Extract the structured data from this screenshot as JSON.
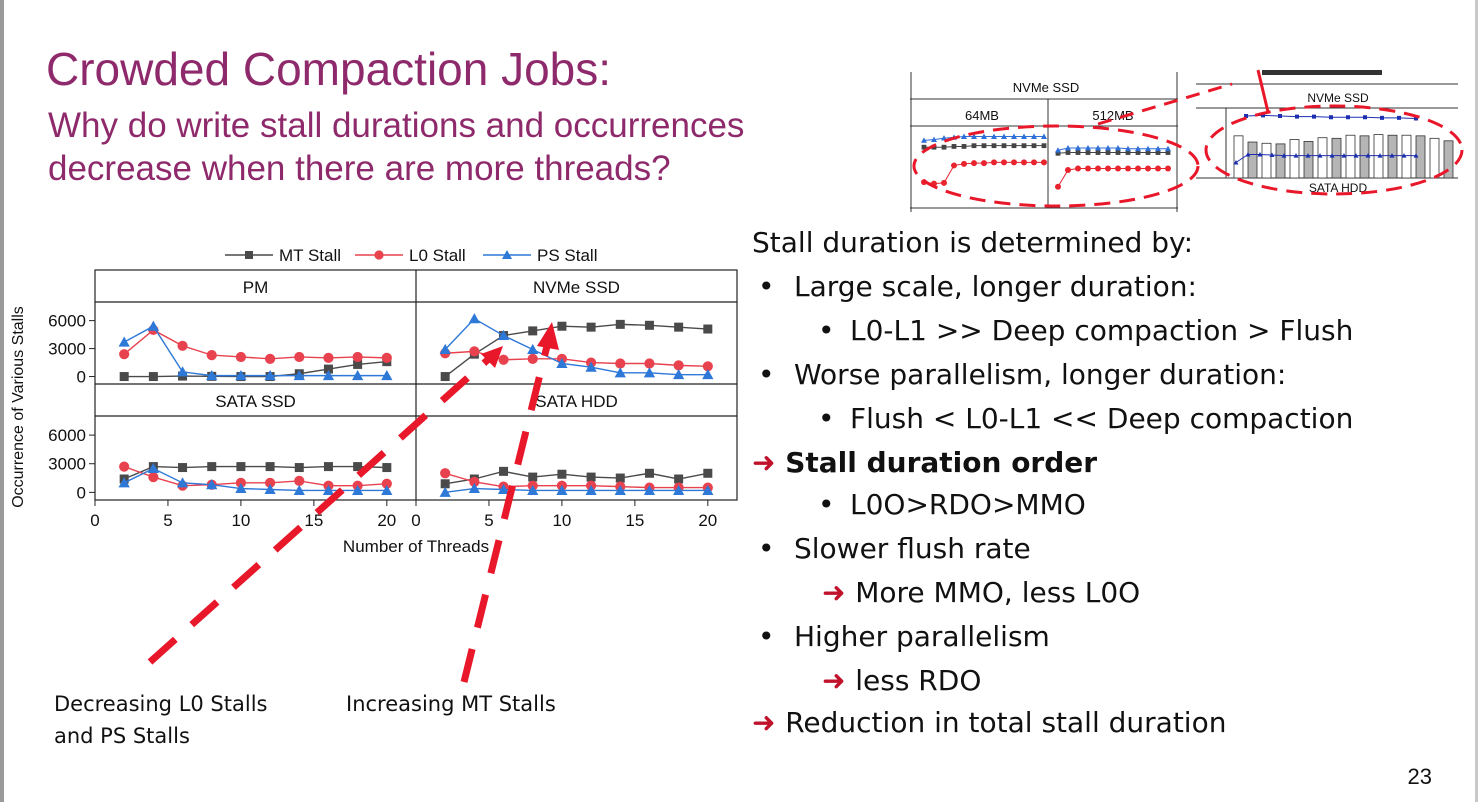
{
  "slide": {
    "title": "Crowded Compaction Jobs:",
    "subtitle_line1": "Why do write stall durations and occurrences",
    "subtitle_line2": "decrease when there are more threads?",
    "page_number": "23",
    "accent_color": "#8e2a6b",
    "arrow_color": "#e8182a"
  },
  "bullets": [
    {
      "text": "Stall duration is determined by:",
      "level": 0,
      "marker": "none",
      "bold": false
    },
    {
      "text": "Large scale, longer duration:",
      "level": 1,
      "marker": "bullet",
      "bold": false
    },
    {
      "text": "L0-L1 >> Deep compaction > Flush",
      "level": 2,
      "marker": "bullet",
      "bold": false
    },
    {
      "text": "Worse parallelism, longer duration:",
      "level": 1,
      "marker": "bullet",
      "bold": false
    },
    {
      "text": "Flush < L0-L1 << Deep compaction",
      "level": 2,
      "marker": "bullet",
      "bold": false
    },
    {
      "text": "Stall duration order",
      "level": 0,
      "marker": "arrow",
      "bold": true
    },
    {
      "text": "L0O>RDO>MMO",
      "level": 2,
      "marker": "bullet",
      "bold": false
    },
    {
      "text": "Slower flush rate",
      "level": 1,
      "marker": "bullet",
      "bold": false
    },
    {
      "text": "More MMO, less L0O",
      "level": 2,
      "marker": "arrow",
      "bold": false
    },
    {
      "text": "Higher parallelism",
      "level": 1,
      "marker": "bullet",
      "bold": false
    },
    {
      "text": "less RDO",
      "level": 2,
      "marker": "arrow",
      "bold": false
    },
    {
      "text": "Reduction in total stall duration",
      "level": 0,
      "marker": "arrow",
      "bold": false
    }
  ],
  "annotations": {
    "left_line1": "Decreasing L0 Stalls",
    "left_line2": "and PS Stalls",
    "right": "Increasing MT Stalls"
  },
  "chart_data": [
    {
      "type": "line",
      "title": "",
      "xlabel": "Number of Threads",
      "ylabel": "Occurrence of Various Stalls",
      "legend": [
        "MT Stall",
        "L0 Stall",
        "PS Stall"
      ],
      "legend_position": "top",
      "x": [
        2,
        4,
        6,
        8,
        10,
        12,
        14,
        16,
        18,
        20
      ],
      "xlim": [
        0,
        22
      ],
      "xticks": [
        "0",
        "5",
        "10",
        "15",
        "20"
      ],
      "ylim": [
        -800,
        8000
      ],
      "yticks": [
        "0",
        "3000",
        "6000"
      ],
      "series_colors": {
        "MT Stall": "#4a4a4a",
        "L0 Stall": "#e8424f",
        "PS Stall": "#2e78d8"
      },
      "series_markers": {
        "MT Stall": "square",
        "L0 Stall": "circle",
        "PS Stall": "triangle"
      },
      "panels": [
        {
          "name": "PM",
          "series": [
            {
              "name": "MT Stall",
              "values": [
                0,
                0,
                50,
                20,
                0,
                0,
                300,
                800,
                1300,
                1600
              ]
            },
            {
              "name": "L0 Stall",
              "values": [
                2400,
                5000,
                3300,
                2300,
                2100,
                1900,
                2100,
                2000,
                2100,
                2000
              ]
            },
            {
              "name": "PS Stall",
              "values": [
                3700,
                5400,
                500,
                100,
                100,
                100,
                100,
                100,
                100,
                100
              ]
            }
          ]
        },
        {
          "name": "NVMe SSD",
          "series": [
            {
              "name": "MT Stall",
              "values": [
                0,
                2400,
                4400,
                4900,
                5400,
                5300,
                5600,
                5500,
                5300,
                5100
              ]
            },
            {
              "name": "L0 Stall",
              "values": [
                2500,
                2700,
                1800,
                1900,
                1900,
                1500,
                1400,
                1400,
                1200,
                1100
              ]
            },
            {
              "name": "PS Stall",
              "values": [
                2900,
                6200,
                4400,
                2900,
                1400,
                1000,
                400,
                400,
                200,
                200
              ]
            }
          ]
        },
        {
          "name": "SATA SSD",
          "series": [
            {
              "name": "MT Stall",
              "values": [
                1400,
                2700,
                2600,
                2700,
                2700,
                2700,
                2600,
                2700,
                2700,
                2600
              ]
            },
            {
              "name": "L0 Stall",
              "values": [
                2700,
                1600,
                700,
                800,
                1000,
                1000,
                1200,
                700,
                700,
                900
              ]
            },
            {
              "name": "PS Stall",
              "values": [
                1000,
                2500,
                1000,
                800,
                400,
                300,
                200,
                200,
                200,
                200
              ]
            }
          ]
        },
        {
          "name": "SATA HDD",
          "series": [
            {
              "name": "MT Stall",
              "values": [
                900,
                1400,
                2200,
                1600,
                1900,
                1600,
                1500,
                2000,
                1400,
                2000
              ]
            },
            {
              "name": "L0 Stall",
              "values": [
                2000,
                1100,
                600,
                700,
                700,
                700,
                600,
                500,
                500,
                500
              ]
            },
            {
              "name": "PS Stall",
              "values": [
                0,
                400,
                300,
                200,
                200,
                200,
                200,
                200,
                200,
                200
              ]
            }
          ]
        }
      ]
    },
    {
      "type": "line",
      "title": "",
      "header": "NVMe SSD",
      "panels": [
        "64MB",
        "512MB"
      ],
      "ylim": [
        0,
        10
      ],
      "series": [
        {
          "name": "MT Stall",
          "left": [
            8.0,
            8.0,
            8.0,
            8.1,
            8.1,
            8.2,
            8.2,
            8.2,
            8.2,
            8.2,
            8.2,
            8.2,
            8.2
          ],
          "right": [
            7.2,
            7.3,
            7.3,
            7.3,
            7.3,
            7.3,
            7.3,
            7.3,
            7.3,
            7.3,
            7.3,
            7.3
          ]
        },
        {
          "name": "L0 Stall",
          "left": [
            3.4,
            3.2,
            3.3,
            5.6,
            5.8,
            5.9,
            5.9,
            6.0,
            6.0,
            6.0,
            6.0,
            6.0,
            6.0
          ],
          "right": [
            2.8,
            5.0,
            5.2,
            5.2,
            5.2,
            5.2,
            5.2,
            5.2,
            5.2,
            5.2,
            5.2,
            5.2
          ]
        },
        {
          "name": "PS Stall",
          "left": [
            8.9,
            9.0,
            9.2,
            9.3,
            9.4,
            9.4,
            9.4,
            9.4,
            9.4,
            9.4,
            9.4,
            9.4,
            9.4
          ],
          "right": [
            7.6,
            7.9,
            7.9,
            7.9,
            7.9,
            7.9,
            7.9,
            7.8,
            7.8,
            7.8,
            7.8,
            7.8
          ]
        }
      ]
    },
    {
      "type": "bar",
      "title": "",
      "header": "NVMe SSD",
      "footer": "SATA HDD",
      "ylim": [
        0,
        10
      ],
      "bars": [
        6.8,
        5.8,
        5.6,
        5.5,
        6.2,
        5.9,
        6.5,
        6.4,
        6.9,
        6.8,
        7.0,
        6.9,
        6.9,
        6.8,
        6.4,
        6.0
      ],
      "series": [
        {
          "name": "top",
          "values": [
            10.0,
            10.1,
            10.0,
            9.9,
            9.9,
            9.8,
            9.8,
            9.8,
            9.7,
            9.7,
            9.6
          ]
        },
        {
          "name": "bottom",
          "values": [
            2.5,
            3.8,
            3.8,
            3.7,
            3.6,
            3.6,
            3.6,
            3.6,
            3.6,
            3.6,
            3.6,
            3.6,
            3.6,
            3.6,
            3.6,
            3.6
          ]
        }
      ]
    }
  ]
}
